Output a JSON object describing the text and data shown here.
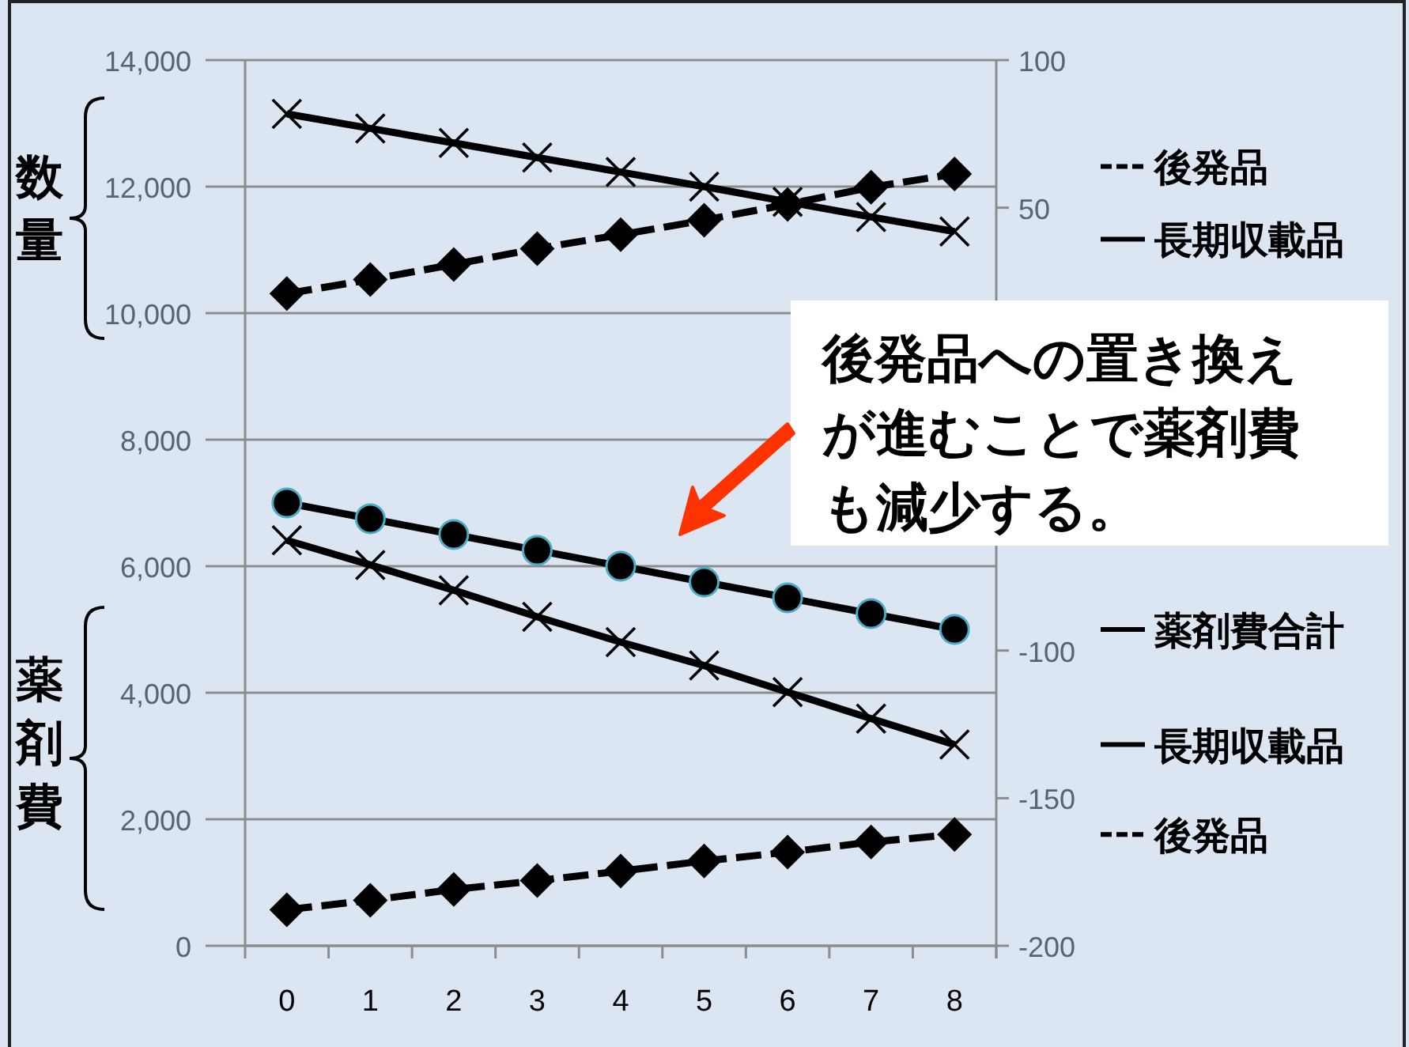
{
  "chart_data": {
    "type": "line",
    "categories": [
      "0",
      "1",
      "2",
      "3",
      "4",
      "5",
      "6",
      "7",
      "8"
    ],
    "series": [
      {
        "name": "後発品",
        "color": "#000000",
        "marker": "diamond",
        "line_style": "dashed",
        "values": [
          10310,
          10530,
          10770,
          11020,
          11240,
          11470,
          11720,
          11990,
          12200
        ]
      },
      {
        "name": "長期収載品",
        "color": "#000000",
        "marker": "cross",
        "line_style": "solid",
        "values": [
          13150,
          12920,
          12690,
          12460,
          12230,
          12000,
          11760,
          11520,
          11290
        ]
      },
      {
        "name": "薬剤費合計",
        "color": "#000000",
        "marker": "circle",
        "line_style": "solid",
        "values": [
          7000,
          6750,
          6500,
          6250,
          6000,
          5750,
          5500,
          5250,
          5000
        ]
      },
      {
        "name": "長期収載品",
        "color": "#000000",
        "marker": "cross",
        "line_style": "solid",
        "values": [
          6410,
          6020,
          5620,
          5200,
          4800,
          4430,
          4010,
          3590,
          3180
        ]
      },
      {
        "name": "後発品",
        "color": "#000000",
        "marker": "diamond",
        "line_style": "dashed",
        "values": [
          570,
          720,
          890,
          1030,
          1180,
          1340,
          1480,
          1640,
          1760
        ]
      }
    ],
    "ylim": [
      0,
      14000
    ],
    "yticks": [
      {
        "value": 0,
        "label": "0"
      },
      {
        "value": 2000,
        "label": "2,000"
      },
      {
        "value": 4000,
        "label": "4,000"
      },
      {
        "value": 6000,
        "label": "6,000"
      },
      {
        "value": 8000,
        "label": "8,000"
      },
      {
        "value": 10000,
        "label": "10,000"
      },
      {
        "value": 12000,
        "label": "12,000"
      },
      {
        "value": 14000,
        "label": "14,000"
      }
    ],
    "y2lim": [
      -200,
      100
    ],
    "y2ticks": [
      100,
      50,
      -100,
      -150,
      -200
    ],
    "grid": "y",
    "legend": "right",
    "annotations": [
      "数量",
      "薬剤費",
      "後発品への置き換えが進むことで薬剤費も減少する。"
    ]
  }
}
